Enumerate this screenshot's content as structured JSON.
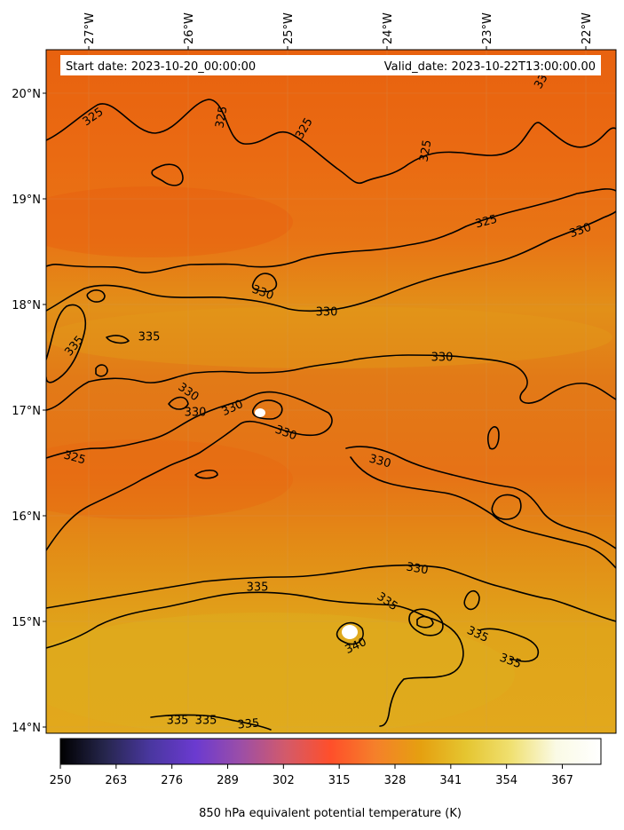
{
  "header": {
    "start_date": "Start date: 2023-10-20_00:00:00",
    "valid_date": "Valid_date: 2023-10-22T13:00:00.00"
  },
  "axes": {
    "lon_labels": [
      "27°W",
      "26°W",
      "25°W",
      "24°W",
      "23°W",
      "22°W"
    ],
    "lat_labels": [
      "20°N",
      "19°N",
      "18°N",
      "17°N",
      "16°N",
      "15°N",
      "14°N"
    ]
  },
  "field": {
    "variable": "850 hPa equivalent potential temperature (K)",
    "colormap": "CMRmap",
    "levels": [
      "325",
      "330",
      "335",
      "340"
    ]
  },
  "contour_labels": [
    {
      "text": "325"
    },
    {
      "text": "325"
    },
    {
      "text": "325"
    },
    {
      "text": "325"
    },
    {
      "text": "325"
    },
    {
      "text": "330"
    },
    {
      "text": "330"
    },
    {
      "text": "330"
    },
    {
      "text": "330"
    },
    {
      "text": "335"
    },
    {
      "text": "335"
    },
    {
      "text": "330"
    },
    {
      "text": "330"
    },
    {
      "text": "330"
    },
    {
      "text": "330"
    },
    {
      "text": "325"
    },
    {
      "text": "330"
    },
    {
      "text": "330"
    },
    {
      "text": "335"
    },
    {
      "text": "335"
    },
    {
      "text": "340"
    },
    {
      "text": "335"
    },
    {
      "text": "335"
    },
    {
      "text": "335"
    },
    {
      "text": "335"
    },
    {
      "text": "335"
    },
    {
      "text": "33"
    }
  ],
  "colorbar": {
    "label": "850 hPa equivalent potential temperature (K)",
    "ticks": [
      "250",
      "263",
      "276",
      "289",
      "302",
      "315",
      "328",
      "341",
      "354",
      "367"
    ],
    "colors": [
      "#000000",
      "#26264d",
      "#4a37a0",
      "#6b3ad0",
      "#9b4ea8",
      "#d35a6a",
      "#ff4f2a",
      "#f5802a",
      "#e5a010",
      "#e5c530",
      "#f0e070",
      "#fafae5",
      "#ffffff"
    ]
  }
}
